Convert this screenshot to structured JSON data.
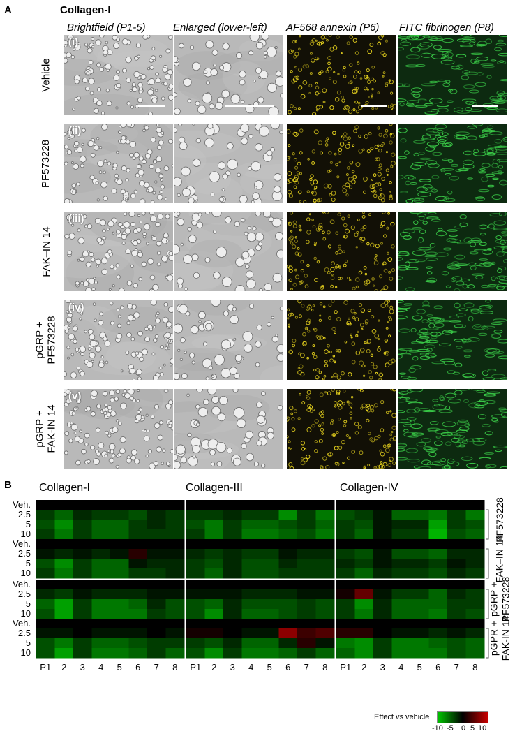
{
  "panelA": {
    "letter": "A",
    "title": "Collagen-I",
    "columns": [
      "Brightfield (P1-5)",
      "Enlarged (lower-left)",
      "AF568 annexin (P6)",
      "FITC fibrinogen (P8)"
    ],
    "rows": [
      {
        "roman": "(i)",
        "label_lines": [
          "Vehicle"
        ]
      },
      {
        "roman": "(ii)",
        "label_lines": [
          "PF573228"
        ]
      },
      {
        "roman": "(iii)",
        "label_lines": [
          "FAK–IN 14"
        ]
      },
      {
        "roman": "(iv)",
        "label_lines": [
          "pGRP +",
          "PF573228"
        ]
      },
      {
        "roman": "(v)",
        "label_lines": [
          "pGRP +",
          "FAK-IN 14"
        ]
      }
    ],
    "colors": {
      "brightfield": "#b9b9b9",
      "annexin": "#e6d21e",
      "fibrinogen": "#3cd24a"
    }
  },
  "panelB": {
    "letter": "B",
    "groups": [
      "Collagen-I",
      "Collagen-III",
      "Collagen-IV"
    ],
    "row_labels": [
      "Veh.",
      "2.5",
      "5",
      "10",
      "Veh.",
      "2.5",
      "5",
      "10",
      "Veh.",
      "2.5",
      "5",
      "10",
      "Veh.",
      "2.5",
      "5",
      "10"
    ],
    "col_labels": [
      "P1",
      "2",
      "3",
      "4",
      "5",
      "6",
      "7",
      "8"
    ],
    "side_labels": [
      {
        "lines": [
          "PF573228"
        ]
      },
      {
        "lines": [
          "FAK–IN 14"
        ]
      },
      {
        "lines": [
          "pGRP +",
          "PF573228"
        ]
      },
      {
        "lines": [
          "pGPR +",
          "FAK-IN 14"
        ]
      }
    ],
    "legend": {
      "title": "Effect vs vehicle",
      "ticks": [
        "-10",
        "-5",
        "0",
        "5",
        "10"
      ],
      "colors": {
        "neg": "#00c800",
        "zero": "#000000",
        "pos": "#c80000"
      }
    }
  },
  "chart_data": {
    "type": "heatmap",
    "xlabel": "",
    "ylabel": "",
    "range": [
      -10,
      10
    ],
    "groups": [
      "Collagen-I",
      "Collagen-III",
      "Collagen-IV"
    ],
    "columns": [
      "P1",
      "2",
      "3",
      "4",
      "5",
      "6",
      "7",
      "8"
    ],
    "rows": [
      "Veh.",
      "2.5",
      "5",
      "10",
      "Veh.",
      "2.5",
      "5",
      "10",
      "Veh.",
      "2.5",
      "5",
      "10",
      "Veh.",
      "2.5",
      "5",
      "10"
    ],
    "values": [
      [
        [
          0,
          0,
          0,
          0,
          0,
          0,
          0,
          0
        ],
        [
          -3,
          -5,
          -2,
          -3,
          -3,
          -4,
          -2,
          -3
        ],
        [
          -4,
          -7,
          -3,
          -5,
          -5,
          -3,
          -2,
          -3
        ],
        [
          -3,
          -6,
          -3,
          -5,
          -5,
          -3,
          -3,
          -3
        ],
        [
          0,
          0,
          0,
          0,
          0,
          0,
          0,
          0
        ],
        [
          -1,
          -2,
          -1,
          -2,
          -1,
          2,
          -1,
          -1
        ],
        [
          -4,
          -7,
          -3,
          -5,
          -5,
          -1,
          -2,
          -2
        ],
        [
          -3,
          -6,
          -3,
          -5,
          -5,
          -3,
          -3,
          -2
        ],
        [
          0,
          0,
          0,
          0,
          0,
          0,
          0,
          0
        ],
        [
          -2,
          -3,
          -1,
          -2,
          -2,
          -2,
          -1,
          -1
        ],
        [
          -5,
          -8,
          -3,
          -6,
          -6,
          -5,
          -2,
          -4
        ],
        [
          -4,
          -8,
          -3,
          -6,
          -6,
          -6,
          -3,
          -4
        ],
        [
          0,
          0,
          0,
          0,
          0,
          0,
          0,
          0
        ],
        [
          -1,
          -1,
          0,
          -1,
          -1,
          -1,
          0,
          -1
        ],
        [
          -4,
          -6,
          -3,
          -5,
          -5,
          -4,
          -3,
          -3
        ],
        [
          -4,
          -8,
          -3,
          -6,
          -6,
          -5,
          -3,
          -5
        ]
      ],
      [
        [
          0,
          0,
          0,
          0,
          0,
          0,
          0,
          0
        ],
        [
          -3,
          -3,
          -2,
          -3,
          -3,
          -7,
          -3,
          -6
        ],
        [
          -4,
          -6,
          -3,
          -5,
          -5,
          -4,
          -3,
          -5
        ],
        [
          -3,
          -6,
          -3,
          -6,
          -6,
          -5,
          -4,
          -6
        ],
        [
          0,
          0,
          0,
          0,
          0,
          0,
          0,
          0
        ],
        [
          -2,
          -3,
          -2,
          -3,
          -3,
          -1,
          -2,
          -2
        ],
        [
          -3,
          -4,
          -2,
          -4,
          -4,
          -2,
          -3,
          -3
        ],
        [
          -3,
          -5,
          -2,
          -4,
          -4,
          -3,
          -3,
          -3
        ],
        [
          0,
          0,
          0,
          0,
          0,
          0,
          0,
          0
        ],
        [
          -1,
          -1,
          -1,
          -2,
          -2,
          -2,
          -1,
          -1
        ],
        [
          -4,
          -5,
          -2,
          -4,
          -4,
          -4,
          -3,
          -4
        ],
        [
          -4,
          -7,
          -2,
          -5,
          -5,
          -4,
          -3,
          -4
        ],
        [
          0,
          0,
          0,
          0,
          0,
          0,
          0,
          0
        ],
        [
          1,
          1,
          0,
          -1,
          -1,
          7,
          3,
          4
        ],
        [
          -3,
          -4,
          -2,
          -5,
          -5,
          -2,
          2,
          -1
        ],
        [
          -4,
          -7,
          -3,
          -6,
          -6,
          -5,
          -3,
          -5
        ]
      ],
      [
        [
          0,
          0,
          0,
          0,
          0,
          0,
          0,
          0
        ],
        [
          -4,
          -3,
          -1,
          -5,
          -5,
          -6,
          -3,
          -6
        ],
        [
          -3,
          -4,
          -1,
          -2,
          -2,
          -8,
          -3,
          -4
        ],
        [
          -3,
          -5,
          -1,
          -3,
          -3,
          -9,
          -4,
          -5
        ],
        [
          0,
          0,
          0,
          0,
          0,
          0,
          0,
          0
        ],
        [
          -3,
          -4,
          -1,
          -4,
          -4,
          -5,
          -2,
          -2
        ],
        [
          -2,
          -3,
          -1,
          -2,
          -2,
          -3,
          -1,
          -2
        ],
        [
          -3,
          -5,
          -2,
          -3,
          -3,
          -4,
          -2,
          -3
        ],
        [
          0,
          0,
          0,
          0,
          0,
          0,
          0,
          0
        ],
        [
          1,
          5,
          -1,
          -3,
          -3,
          -5,
          -2,
          -3
        ],
        [
          -3,
          -7,
          -2,
          -5,
          -5,
          -5,
          -3,
          -3
        ],
        [
          -3,
          -6,
          -2,
          -5,
          -5,
          -6,
          -3,
          -4
        ],
        [
          0,
          0,
          0,
          0,
          0,
          0,
          0,
          0
        ],
        [
          2,
          2,
          0,
          -1,
          -1,
          -2,
          -1,
          -2
        ],
        [
          -6,
          -7,
          -3,
          -6,
          -6,
          -5,
          -4,
          -5
        ],
        [
          -5,
          -7,
          -3,
          -6,
          -6,
          -6,
          -4,
          -5
        ]
      ]
    ]
  }
}
